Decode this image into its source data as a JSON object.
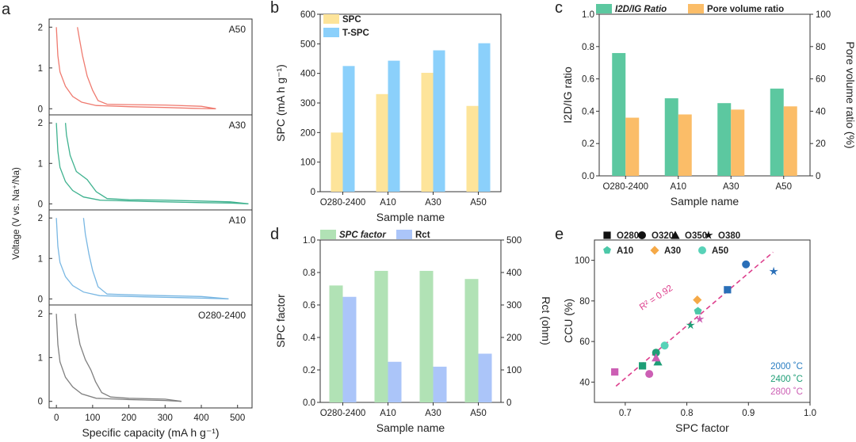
{
  "panel_letters": [
    "a",
    "b",
    "c",
    "d",
    "e"
  ],
  "chart_data": [
    {
      "id": "a",
      "type": "line",
      "xlabel": "Specific capacity (mA h g⁻¹)",
      "ylabel": "Voltage (V vs. Na⁺/Na)",
      "xlim": [
        -20,
        540
      ],
      "xticks": [
        0,
        100,
        200,
        300,
        400,
        500
      ],
      "ylim": [
        -0.15,
        2.2
      ],
      "yticks": [
        0,
        1,
        2
      ],
      "subplots": [
        {
          "name": "A50",
          "color": "#ef7a6f",
          "discharge": [
            [
              0,
              2.0
            ],
            [
              4,
              1.3
            ],
            [
              10,
              0.9
            ],
            [
              25,
              0.55
            ],
            [
              45,
              0.3
            ],
            [
              70,
              0.16
            ],
            [
              110,
              0.08
            ],
            [
              200,
              0.05
            ],
            [
              300,
              0.03
            ],
            [
              380,
              0.01
            ],
            [
              440,
              0.0
            ]
          ],
          "charge": [
            [
              440,
              0.0
            ],
            [
              400,
              0.06
            ],
            [
              300,
              0.09
            ],
            [
              200,
              0.1
            ],
            [
              140,
              0.11
            ],
            [
              115,
              0.2
            ],
            [
              100,
              0.45
            ],
            [
              85,
              0.8
            ],
            [
              72,
              1.3
            ],
            [
              63,
              1.75
            ],
            [
              58,
              2.0
            ]
          ]
        },
        {
          "name": "A30",
          "color": "#3fb28f",
          "discharge": [
            [
              0,
              2.0
            ],
            [
              4,
              1.3
            ],
            [
              10,
              0.9
            ],
            [
              25,
              0.55
            ],
            [
              45,
              0.33
            ],
            [
              75,
              0.17
            ],
            [
              120,
              0.09
            ],
            [
              250,
              0.06
            ],
            [
              400,
              0.03
            ],
            [
              480,
              0.02
            ],
            [
              530,
              0.0
            ]
          ],
          "charge": [
            [
              530,
              0.0
            ],
            [
              480,
              0.05
            ],
            [
              400,
              0.07
            ],
            [
              300,
              0.09
            ],
            [
              200,
              0.1
            ],
            [
              140,
              0.13
            ],
            [
              110,
              0.3
            ],
            [
              85,
              0.6
            ],
            [
              55,
              0.8
            ],
            [
              38,
              1.2
            ],
            [
              28,
              1.7
            ],
            [
              25,
              2.0
            ]
          ]
        },
        {
          "name": "A10",
          "color": "#79b7e3",
          "discharge": [
            [
              0,
              2.0
            ],
            [
              4,
              1.3
            ],
            [
              10,
              0.9
            ],
            [
              25,
              0.55
            ],
            [
              45,
              0.33
            ],
            [
              75,
              0.17
            ],
            [
              120,
              0.08
            ],
            [
              250,
              0.05
            ],
            [
              400,
              0.02
            ],
            [
              475,
              0.0
            ]
          ],
          "charge": [
            [
              475,
              0.0
            ],
            [
              400,
              0.06
            ],
            [
              300,
              0.08
            ],
            [
              200,
              0.1
            ],
            [
              140,
              0.12
            ],
            [
              115,
              0.3
            ],
            [
              100,
              0.7
            ],
            [
              90,
              1.1
            ],
            [
              80,
              1.6
            ],
            [
              75,
              2.0
            ]
          ]
        },
        {
          "name": "O280-2400",
          "color": "#808080",
          "discharge": [
            [
              0,
              2.0
            ],
            [
              4,
              1.3
            ],
            [
              10,
              0.9
            ],
            [
              25,
              0.55
            ],
            [
              45,
              0.33
            ],
            [
              70,
              0.17
            ],
            [
              110,
              0.07
            ],
            [
              200,
              0.04
            ],
            [
              300,
              0.02
            ],
            [
              345,
              0.0
            ]
          ],
          "charge": [
            [
              345,
              0.0
            ],
            [
              300,
              0.05
            ],
            [
              200,
              0.07
            ],
            [
              150,
              0.1
            ],
            [
              125,
              0.2
            ],
            [
              108,
              0.45
            ],
            [
              95,
              0.72
            ],
            [
              80,
              0.95
            ],
            [
              65,
              1.3
            ],
            [
              55,
              1.75
            ],
            [
              52,
              2.0
            ]
          ]
        }
      ]
    },
    {
      "id": "b",
      "type": "bar",
      "xlabel": "Sample name",
      "ylabel": "SPC  (mA h g⁻¹)",
      "categories": [
        "O280-2400",
        "A10",
        "A30",
        "A50"
      ],
      "ylim": [
        0,
        600
      ],
      "yticks": [
        0,
        100,
        200,
        300,
        400,
        500,
        600
      ],
      "series": [
        {
          "name": "SPC",
          "color": "#fde49a",
          "values": [
            200,
            330,
            402,
            290
          ]
        },
        {
          "name": "T-SPC",
          "color": "#8bd0fb",
          "values": [
            425,
            443,
            478,
            502
          ]
        }
      ]
    },
    {
      "id": "c",
      "type": "bar",
      "xlabel": "Sample name",
      "ylabel": "I2D/IG ratio",
      "ylabel_right": "Pore volume ratio (%)",
      "categories": [
        "O280-2400",
        "A10",
        "A30",
        "A50"
      ],
      "ylim": [
        0,
        1.0
      ],
      "yticks": [
        0.0,
        0.2,
        0.4,
        0.6,
        0.8,
        1.0
      ],
      "ylim_right": [
        0,
        100
      ],
      "yticks_right": [
        0,
        20,
        40,
        60,
        80,
        100
      ],
      "series": [
        {
          "name": "I2D/IG Ratio",
          "color": "#5cc8a0",
          "axis": "left",
          "values": [
            0.76,
            0.48,
            0.45,
            0.54
          ]
        },
        {
          "name": "Pore volume ratio",
          "color": "#fbbd68",
          "axis": "right",
          "values": [
            36,
            38,
            41,
            43
          ]
        }
      ]
    },
    {
      "id": "d",
      "type": "bar",
      "xlabel": "Sample name",
      "ylabel": "SPC factor",
      "ylabel_right": "Rct (ohm)",
      "categories": [
        "O280-2400",
        "A10",
        "A30",
        "A50"
      ],
      "ylim": [
        0,
        1.0
      ],
      "yticks": [
        0.0,
        0.2,
        0.4,
        0.6,
        0.8,
        1.0
      ],
      "ylim_right": [
        0,
        500
      ],
      "yticks_right": [
        0,
        100,
        200,
        300,
        400,
        500
      ],
      "series": [
        {
          "name": "SPC factor",
          "color": "#b1e2b5",
          "axis": "left",
          "values": [
            0.72,
            0.81,
            0.81,
            0.76
          ]
        },
        {
          "name": "Rct",
          "color": "#abc5f9",
          "axis": "right",
          "values": [
            325,
            125,
            110,
            150
          ]
        }
      ]
    },
    {
      "id": "e",
      "type": "scatter",
      "xlabel": "SPC factor",
      "ylabel": "CCU (%)",
      "xlim": [
        0.65,
        1.0
      ],
      "xticks": [
        0.7,
        0.8,
        0.9,
        1.0
      ],
      "ylim": [
        30,
        110
      ],
      "yticks": [
        40,
        60,
        80,
        100
      ],
      "legend_row1": [
        {
          "label": "O280",
          "marker": "square"
        },
        {
          "label": "O320",
          "marker": "circle"
        },
        {
          "label": "O350",
          "marker": "triangle"
        },
        {
          "label": "O380",
          "marker": "star"
        }
      ],
      "legend_row2": [
        {
          "label": "A10",
          "marker": "pentagon",
          "color": "#4cc8a8"
        },
        {
          "label": "A30",
          "marker": "diamond",
          "color": "#f5a947"
        },
        {
          "label": "A50",
          "marker": "circle",
          "color": "#58d2b8"
        }
      ],
      "temperature_labels": [
        {
          "label": "2000 ˚C",
          "color": "#2a7ec2"
        },
        {
          "label": "2400 ˚C",
          "color": "#1e9e76"
        },
        {
          "label": "2800 ˚C",
          "color": "#cc5fb4"
        }
      ],
      "fit": {
        "label": "R² = 0.92",
        "x": [
          0.685,
          0.94
        ],
        "y": [
          38,
          104
        ],
        "color": "#dd3e8c"
      },
      "points": [
        {
          "marker": "square",
          "color": "#2a6fb8",
          "x": 0.866,
          "y": 85.5
        },
        {
          "marker": "circle",
          "color": "#2a6fb8",
          "x": 0.896,
          "y": 98
        },
        {
          "marker": "star",
          "color": "#2a6fb8",
          "x": 0.941,
          "y": 94.5
        },
        {
          "marker": "square",
          "color": "#1e9e76",
          "x": 0.728,
          "y": 48
        },
        {
          "marker": "circle",
          "color": "#1e9e76",
          "x": 0.75,
          "y": 54.5
        },
        {
          "marker": "triangle",
          "color": "#1e9e76",
          "x": 0.753,
          "y": 50
        },
        {
          "marker": "star",
          "color": "#1e9e76",
          "x": 0.806,
          "y": 68
        },
        {
          "marker": "square",
          "color": "#cc5fb4",
          "x": 0.683,
          "y": 45
        },
        {
          "marker": "circle",
          "color": "#cc5fb4",
          "x": 0.739,
          "y": 44
        },
        {
          "marker": "triangle",
          "color": "#cc5fb4",
          "x": 0.75,
          "y": 52
        },
        {
          "marker": "star",
          "color": "#cc5fb4",
          "x": 0.821,
          "y": 71
        },
        {
          "marker": "pentagon",
          "color": "#4cc8a8",
          "x": 0.818,
          "y": 75
        },
        {
          "marker": "diamond",
          "color": "#f5a947",
          "x": 0.817,
          "y": 80.5
        },
        {
          "marker": "circle",
          "color": "#58d2b8",
          "x": 0.764,
          "y": 58
        }
      ]
    }
  ]
}
